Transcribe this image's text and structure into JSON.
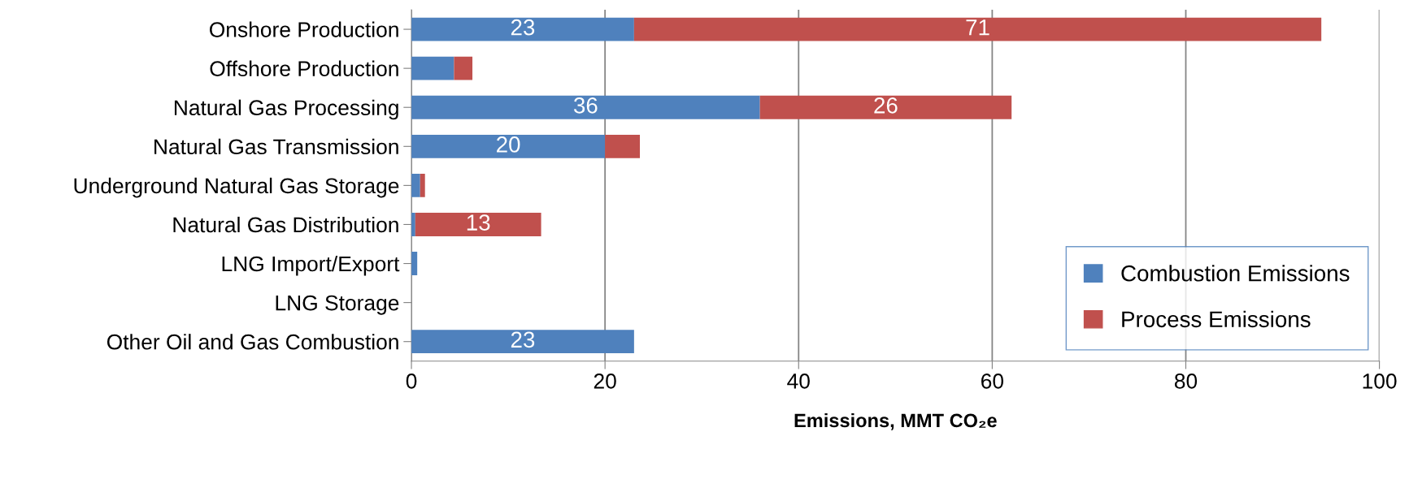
{
  "chart_data": {
    "type": "bar",
    "orientation": "horizontal",
    "stacked": true,
    "categories": [
      "Onshore Production",
      "Offshore Production",
      "Natural Gas Processing",
      "Natural Gas Transmission",
      "Underground Natural Gas Storage",
      "Natural Gas Distribution",
      "LNG Import/Export",
      "LNG Storage",
      "Other Oil and Gas Combustion"
    ],
    "series": [
      {
        "name": "Combustion Emissions",
        "color": "#4f81bd",
        "values": [
          23,
          4.4,
          36,
          20,
          0.9,
          0.4,
          0.6,
          0,
          23
        ],
        "value_labels": [
          "23",
          null,
          "36",
          "20",
          null,
          null,
          null,
          null,
          "23"
        ]
      },
      {
        "name": "Process Emissions",
        "color": "#c0504d",
        "values": [
          71,
          1.9,
          26,
          3.6,
          0.5,
          13,
          0,
          0,
          0
        ],
        "value_labels": [
          "71",
          null,
          "26",
          null,
          null,
          "13",
          null,
          null,
          null
        ]
      }
    ],
    "xlabel": "Emissions, MMT CO₂e",
    "xlim": [
      0,
      100
    ],
    "xticks": [
      0,
      20,
      40,
      60,
      80,
      100
    ],
    "grid": "x",
    "legend": "bottom right"
  }
}
